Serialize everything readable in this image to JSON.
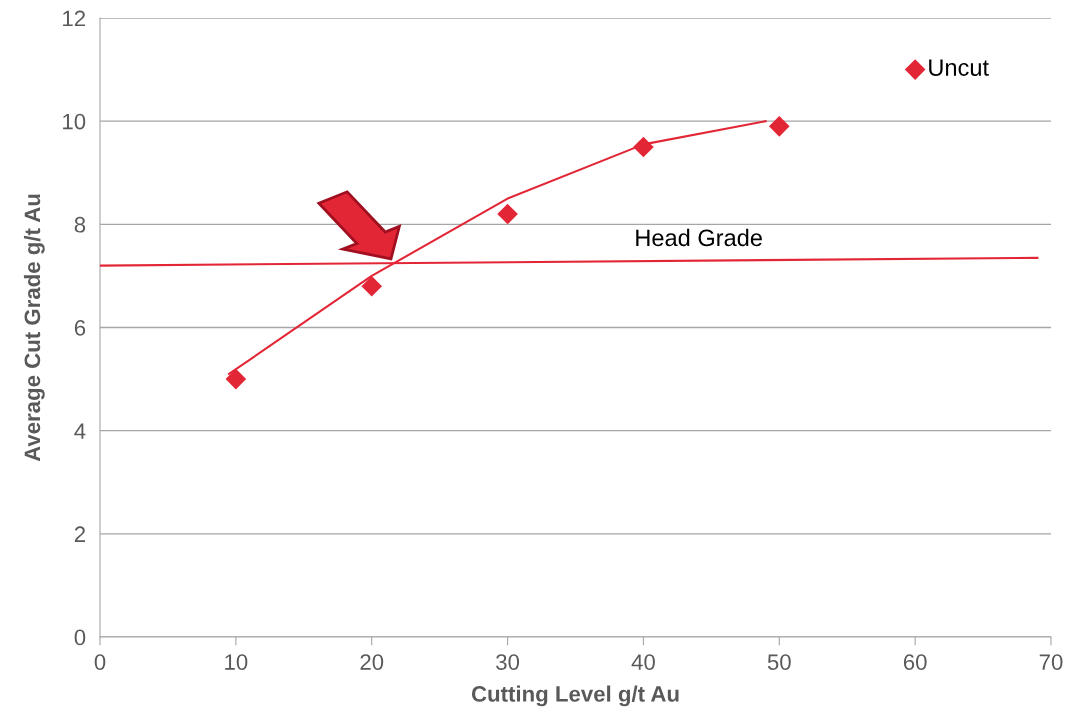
{
  "chart_data": {
    "type": "scatter",
    "xlabel": "Cutting Level g/t Au",
    "ylabel": "Average Cut Grade g/t Au",
    "xlim": [
      0,
      70
    ],
    "xticks": [
      0,
      10,
      20,
      30,
      40,
      50,
      60,
      70
    ],
    "ylim": [
      0,
      12
    ],
    "yticks": [
      0,
      2,
      4,
      6,
      8,
      10,
      12
    ],
    "grid": "y",
    "series": [
      {
        "marker": "diamond",
        "color": "#e32636",
        "x": [
          10,
          20,
          30,
          40,
          50
        ],
        "values": [
          5.0,
          6.8,
          8.2,
          9.5,
          9.9
        ]
      },
      {
        "marker": "diamond",
        "name": "Uncut",
        "color": "#e32636",
        "x": [
          60
        ],
        "values": [
          11.0
        ]
      },
      {
        "type": "line",
        "marker": "none",
        "color": "#e32636",
        "x": [
          9.5,
          20,
          30,
          40,
          49
        ],
        "values": [
          5.1,
          7.0,
          8.5,
          9.55,
          10.0
        ]
      },
      {
        "type": "line",
        "marker": "none",
        "name": "Head Grade",
        "color": "#e32636",
        "x": [
          0,
          69
        ],
        "values": [
          7.2,
          7.35
        ]
      }
    ]
  }
}
